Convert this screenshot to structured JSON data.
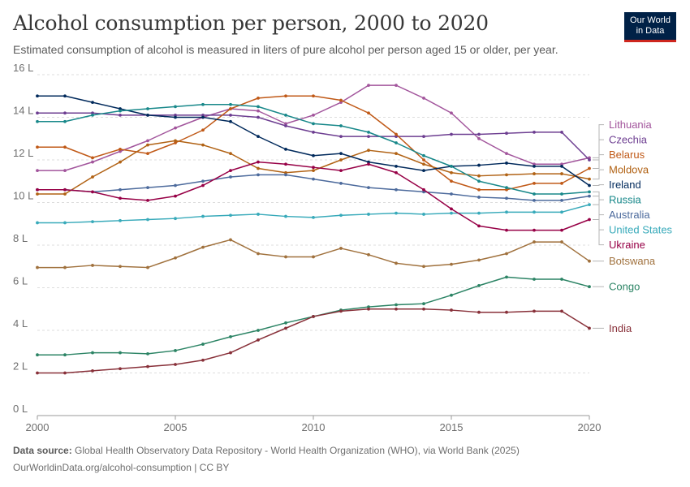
{
  "header": {
    "title": "Alcohol consumption per person, 2000 to 2020",
    "subtitle": "Estimated consumption of alcohol is measured in liters of pure alcohol per person aged 15 or older, per year.",
    "logo_line1": "Our World",
    "logo_line2": "in Data"
  },
  "footer": {
    "source_label": "Data source:",
    "source_text": "Global Health Observatory Data Repository - World Health Organization (WHO), via World Bank (2025)",
    "url_license": "OurWorldinData.org/alcohol-consumption | CC BY"
  },
  "colors": {
    "grid": "#dddddd",
    "axis": "#999999"
  },
  "chart_data": {
    "type": "line",
    "title": "Alcohol consumption per person, 2000 to 2020",
    "x": [
      2000,
      2001,
      2002,
      2003,
      2004,
      2005,
      2006,
      2007,
      2008,
      2009,
      2010,
      2011,
      2012,
      2013,
      2014,
      2015,
      2016,
      2017,
      2018,
      2019,
      2020
    ],
    "x_ticks": [
      "2000",
      "2005",
      "2010",
      "2015",
      "2020"
    ],
    "y_ticks": [
      "0 L",
      "2 L",
      "4 L",
      "6 L",
      "8 L",
      "10 L",
      "12 L",
      "14 L",
      "16 L"
    ],
    "ylim": [
      0,
      16
    ],
    "grid": true,
    "legend": "right-side labels",
    "series": [
      {
        "name": "Lithuania",
        "color": "#a2559c",
        "values": [
          11.5,
          11.5,
          11.9,
          12.4,
          12.9,
          13.5,
          14.0,
          14.4,
          14.3,
          13.7,
          14.1,
          14.7,
          15.5,
          15.5,
          14.9,
          14.2,
          13.0,
          12.3,
          11.8,
          11.8,
          12.1
        ]
      },
      {
        "name": "Czechia",
        "color": "#6d3e91",
        "values": [
          14.2,
          14.2,
          14.2,
          14.1,
          14.1,
          14.1,
          14.1,
          14.1,
          14.0,
          13.6,
          13.3,
          13.1,
          13.1,
          13.1,
          13.1,
          13.2,
          13.2,
          13.25,
          13.3,
          13.3,
          12.0
        ]
      },
      {
        "name": "Belarus",
        "color": "#c05917",
        "values": [
          12.6,
          12.6,
          12.1,
          12.5,
          12.3,
          12.8,
          13.4,
          14.4,
          14.9,
          15.0,
          15.0,
          14.8,
          14.2,
          13.2,
          12.0,
          11.0,
          10.6,
          10.6,
          10.9,
          10.9,
          11.6
        ]
      },
      {
        "name": "Moldova",
        "color": "#b16214",
        "values": [
          10.4,
          10.4,
          11.2,
          11.9,
          12.7,
          12.9,
          12.7,
          12.3,
          11.6,
          11.4,
          11.5,
          12.0,
          12.45,
          12.3,
          11.8,
          11.4,
          11.25,
          11.3,
          11.35,
          11.35,
          11.1
        ]
      },
      {
        "name": "Ireland",
        "color": "#00295b",
        "values": [
          15.0,
          15.0,
          14.7,
          14.4,
          14.1,
          14.0,
          14.0,
          13.8,
          13.1,
          12.5,
          12.2,
          12.3,
          11.9,
          11.7,
          11.5,
          11.7,
          11.75,
          11.85,
          11.7,
          11.7,
          10.8
        ]
      },
      {
        "name": "Russia",
        "color": "#18888a",
        "values": [
          13.8,
          13.8,
          14.1,
          14.3,
          14.4,
          14.5,
          14.6,
          14.6,
          14.5,
          14.1,
          13.7,
          13.6,
          13.3,
          12.8,
          12.2,
          11.7,
          11.0,
          10.7,
          10.4,
          10.4,
          10.5
        ]
      },
      {
        "name": "Australia",
        "color": "#4c6a9c",
        "values": [
          10.6,
          10.6,
          10.5,
          10.6,
          10.7,
          10.8,
          11.0,
          11.2,
          11.3,
          11.3,
          11.1,
          10.9,
          10.7,
          10.6,
          10.5,
          10.4,
          10.25,
          10.2,
          10.1,
          10.1,
          10.3
        ]
      },
      {
        "name": "United States",
        "color": "#38aaba",
        "values": [
          9.05,
          9.05,
          9.1,
          9.15,
          9.2,
          9.25,
          9.35,
          9.4,
          9.45,
          9.35,
          9.3,
          9.4,
          9.45,
          9.5,
          9.45,
          9.5,
          9.5,
          9.55,
          9.55,
          9.55,
          9.9
        ]
      },
      {
        "name": "Ukraine",
        "color": "#970046",
        "values": [
          10.6,
          10.6,
          10.5,
          10.2,
          10.1,
          10.3,
          10.8,
          11.5,
          11.9,
          11.8,
          11.65,
          11.5,
          11.8,
          11.4,
          10.6,
          9.7,
          8.9,
          8.7,
          8.7,
          8.7,
          9.2
        ]
      },
      {
        "name": "Botswana",
        "color": "#a0713d",
        "values": [
          6.95,
          6.95,
          7.05,
          7.0,
          6.95,
          7.4,
          7.9,
          8.25,
          7.6,
          7.45,
          7.45,
          7.85,
          7.55,
          7.15,
          7.0,
          7.1,
          7.3,
          7.6,
          8.15,
          8.15,
          7.25
        ]
      },
      {
        "name": "Congo",
        "color": "#2c8465",
        "values": [
          2.85,
          2.85,
          2.95,
          2.95,
          2.9,
          3.05,
          3.35,
          3.7,
          4.0,
          4.35,
          4.65,
          4.95,
          5.1,
          5.2,
          5.25,
          5.65,
          6.1,
          6.5,
          6.4,
          6.4,
          6.05
        ]
      },
      {
        "name": "India",
        "color": "#883039",
        "values": [
          2.0,
          2.0,
          2.1,
          2.2,
          2.3,
          2.4,
          2.6,
          2.95,
          3.55,
          4.1,
          4.65,
          4.9,
          5.0,
          5.0,
          5.0,
          4.95,
          4.85,
          4.85,
          4.9,
          4.9,
          4.1
        ]
      }
    ]
  }
}
